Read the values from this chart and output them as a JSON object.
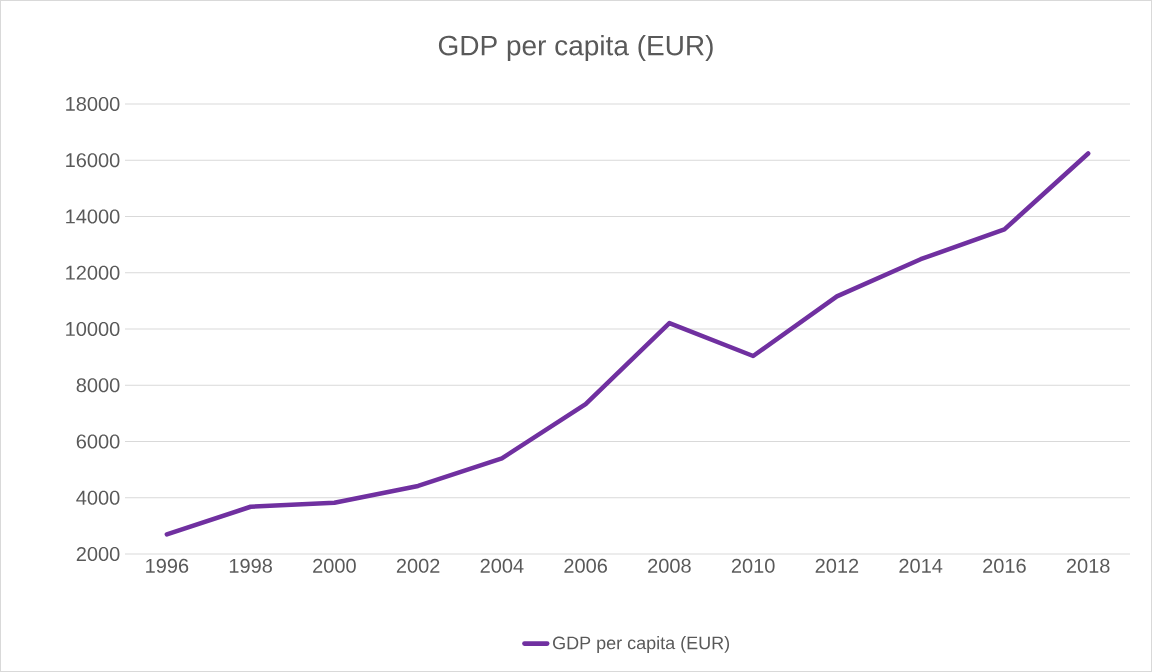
{
  "chart_data": {
    "type": "line",
    "title": "GDP per capita (EUR)",
    "categories": [
      "1996",
      "1998",
      "2000",
      "2002",
      "2004",
      "2006",
      "2008",
      "2010",
      "2012",
      "2014",
      "2016",
      "2018"
    ],
    "series": [
      {
        "name": "GDP per capita (EUR)",
        "color": "#7030a0",
        "values": [
          2700,
          3680,
          3820,
          4420,
          5400,
          7330,
          10210,
          9040,
          11160,
          12480,
          13540,
          16240
        ]
      }
    ],
    "ylim": [
      2000,
      18000
    ],
    "yticks": [
      2000,
      4000,
      6000,
      8000,
      10000,
      12000,
      14000,
      16000,
      18000
    ],
    "grid": "y",
    "legend": "bottom",
    "line_style": "solid",
    "marker": "none"
  }
}
